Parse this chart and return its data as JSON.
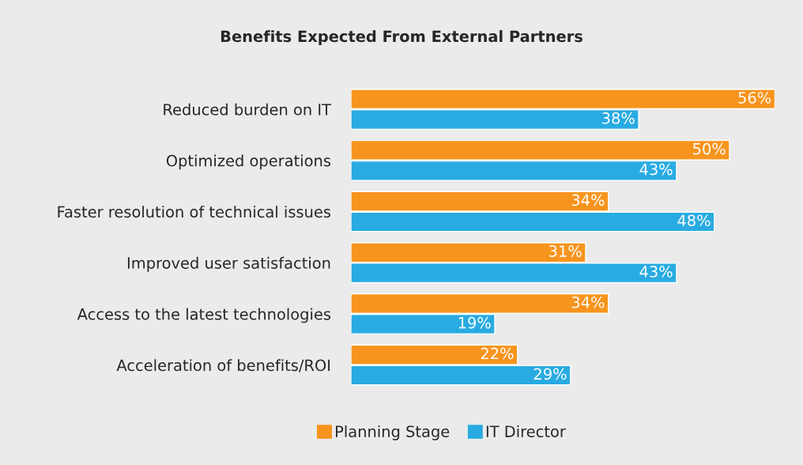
{
  "chart_data": {
    "type": "bar",
    "orientation": "horizontal",
    "title": "Benefits Expected From External Partners",
    "categories": [
      "Reduced burden on IT",
      "Optimized operations",
      "Faster resolution of technical issues",
      "Improved user satisfaction",
      "Access to the latest technologies",
      "Acceleration of benefits/ROI"
    ],
    "series": [
      {
        "name": "Planning Stage",
        "color": "#f7941d",
        "values": [
          56,
          50,
          34,
          31,
          34,
          22
        ],
        "value_labels": [
          "56%",
          "50%",
          "34%",
          "31%",
          "34%",
          "22%"
        ]
      },
      {
        "name": "IT Director",
        "color": "#29abe2",
        "values": [
          38,
          43,
          48,
          43,
          19,
          29
        ],
        "value_labels": [
          "38%",
          "43%",
          "48%",
          "43%",
          "19%",
          "29%"
        ]
      }
    ],
    "legend": "bottom",
    "grid": false,
    "tick_labels": "y"
  }
}
